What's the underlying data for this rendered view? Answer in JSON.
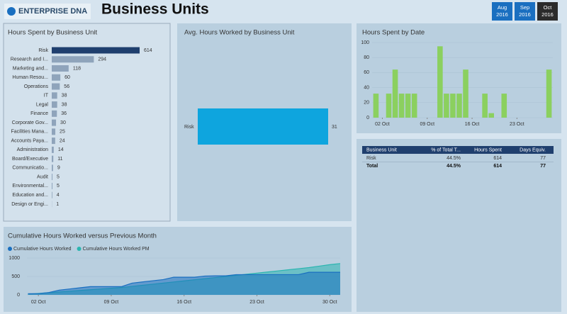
{
  "header": {
    "logo": "ENTERPRISE DNA",
    "title": "Business Units"
  },
  "slicers": [
    {
      "month": "Aug",
      "year": "2016"
    },
    {
      "month": "Sep",
      "year": "2016"
    },
    {
      "month": "Oct",
      "year": "2016",
      "selected": true
    }
  ],
  "chart_data": [
    {
      "type": "hbar",
      "title": "Hours Spent by Business Unit",
      "categories": [
        "Risk",
        "Research and I...",
        "Marketing and...",
        "Human Resou...",
        "Operations",
        "IT",
        "Legal",
        "Finance",
        "Corporate Gov...",
        "Facilities Mana...",
        "Accounts Paya...",
        "Administration",
        "Board/Executive",
        "Communicatio...",
        "Audit",
        "Environmental...",
        "Education and...",
        "Design or Engi..."
      ],
      "values": [
        614,
        294,
        118,
        60,
        56,
        38,
        38,
        36,
        30,
        25,
        24,
        14,
        11,
        9,
        5,
        5,
        4,
        1
      ],
      "color": "#8fa4bb",
      "highlight_color": "#1f3f6e"
    },
    {
      "type": "hbar",
      "title": "Avg. Hours Worked by Business Unit",
      "categories": [
        "Risk"
      ],
      "values": [
        31
      ],
      "color": "#0ea5de"
    },
    {
      "type": "column",
      "title": "Hours Spent by Date",
      "x": [
        1,
        3,
        4,
        5,
        6,
        7,
        11,
        12,
        13,
        14,
        15,
        18,
        19,
        21,
        28
      ],
      "values": [
        32,
        32,
        64,
        32,
        32,
        32,
        95,
        32,
        32,
        32,
        64,
        32,
        6,
        32,
        64
      ],
      "color": "#8bd05f",
      "xlim": [
        0.4,
        28.6
      ],
      "xticks": [
        {
          "value": 2,
          "label": "02 Oct"
        },
        {
          "value": 9,
          "label": "09 Oct"
        },
        {
          "value": 16,
          "label": "16 Oct"
        },
        {
          "value": 23,
          "label": "23 Oct"
        }
      ],
      "ylim": [
        0,
        100
      ],
      "yticks": [
        0,
        20,
        40,
        60,
        80,
        100
      ]
    },
    {
      "type": "area",
      "title": "Cumulative Hours Worked versus Previous Month",
      "x": [
        1,
        2,
        3,
        4,
        5,
        6,
        7,
        8,
        9,
        10,
        11,
        12,
        13,
        14,
        15,
        16,
        17,
        18,
        19,
        20,
        21,
        22,
        23,
        24,
        25,
        26,
        27,
        28,
        29,
        30,
        31
      ],
      "series": [
        {
          "name": "Cumulative Hours Worked",
          "color": "#1a6fc0",
          "values": [
            32,
            32,
            64,
            128,
            160,
            192,
            224,
            224,
            224,
            224,
            319,
            351,
            383,
            415,
            479,
            479,
            479,
            511,
            517,
            517,
            549,
            549,
            549,
            549,
            549,
            549,
            549,
            613,
            613,
            613,
            613
          ]
        },
        {
          "name": "Cumulative Hours Worked PM",
          "color": "#2bb5b0",
          "values": [
            20,
            40,
            60,
            80,
            100,
            120,
            140,
            160,
            180,
            200,
            230,
            260,
            290,
            320,
            350,
            380,
            410,
            440,
            470,
            500,
            530,
            560,
            590,
            620,
            650,
            680,
            710,
            740,
            780,
            820,
            850
          ]
        }
      ],
      "xlim": [
        0.9,
        31
      ],
      "xticks": [
        {
          "value": 2,
          "label": "02 Oct"
        },
        {
          "value": 9,
          "label": "09 Oct"
        },
        {
          "value": 16,
          "label": "16 Oct"
        },
        {
          "value": 23,
          "label": "23 Oct"
        },
        {
          "value": 30,
          "label": "30 Oct"
        }
      ],
      "ylim": [
        0,
        1000
      ],
      "yticks": [
        0,
        500,
        1000
      ]
    }
  ],
  "table": {
    "columns": [
      "Business Unit",
      "% of Total T...",
      "Hours Spent",
      "Days Equiv."
    ],
    "rows": [
      [
        "Risk",
        "44.5%",
        "614",
        "77"
      ],
      [
        "Total",
        "44.5%",
        "614",
        "77"
      ]
    ]
  }
}
